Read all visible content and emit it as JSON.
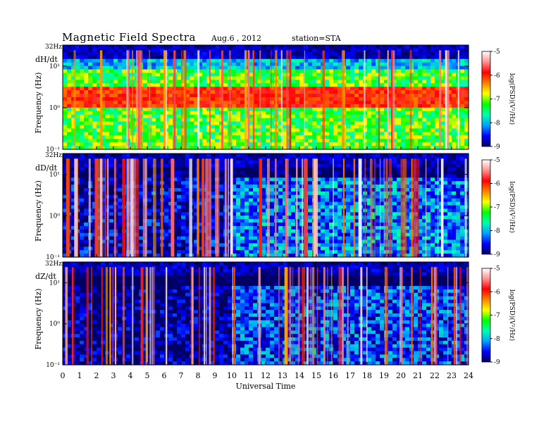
{
  "header": {
    "title": "Magnetic  Field  Spectra",
    "date": "Aug.6  , 2012",
    "station": "station=STA"
  },
  "chart_data": {
    "type": "heatmap",
    "title": "Magnetic  Field  Spectra",
    "xlabel": "Universal  Time",
    "x_ticks": [
      "0",
      "1",
      "2",
      "3",
      "4",
      "5",
      "6",
      "7",
      "8",
      "9",
      "10",
      "11",
      "12",
      "13",
      "14",
      "15",
      "16",
      "17",
      "18",
      "19",
      "20",
      "21",
      "22",
      "23",
      "24"
    ],
    "xlim": [
      0,
      24
    ],
    "y_scale": "log",
    "ylim_hz": [
      0.1,
      32
    ],
    "top_label": "32Hz",
    "y_ticks": [
      "10¹",
      "10⁰",
      "10⁻¹"
    ],
    "ylabel": "Frequency  (Hz)",
    "colorbar": {
      "label": "log(PSD)(V²/Hz)",
      "range": [
        -9,
        -5
      ],
      "ticks": [
        "-5",
        "-6",
        "-7",
        "-8",
        "-9"
      ],
      "colormap": [
        "#000060",
        "#0000ff",
        "#00a0ff",
        "#00ffb0",
        "#00ff00",
        "#ffff00",
        "#ff8000",
        "#ff0000",
        "#ff9090",
        "#ffffff"
      ]
    },
    "panels": [
      {
        "name": "dH/dt",
        "background_level": -7.2,
        "band_level": -6.3
      },
      {
        "name": "dD/dt",
        "background_level": -8.2,
        "band_level": -7.6
      },
      {
        "name": "dZ/dt",
        "background_level": -8.4,
        "band_level": -8.0
      }
    ]
  }
}
